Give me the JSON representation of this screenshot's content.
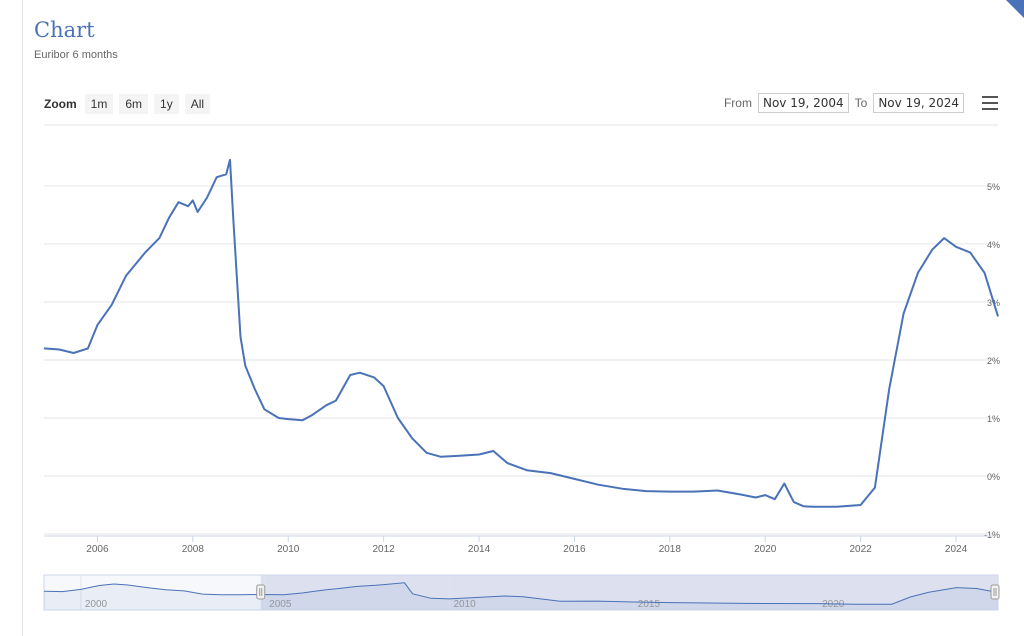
{
  "header": {
    "title": "Chart",
    "subtitle": "Euribor 6 months"
  },
  "toolbar": {
    "zoom_label": "Zoom",
    "zoom_buttons": [
      "1m",
      "6m",
      "1y",
      "All"
    ],
    "from_label": "From",
    "from_value": "Nov 19, 2004",
    "to_label": "To",
    "to_value": "Nov 19, 2024",
    "menu_icon": "hamburger-menu-icon"
  },
  "colors": {
    "series": "#4a72b8",
    "navigator_fill": "#d4daec",
    "grid": "#e6e6e6"
  },
  "chart_data": {
    "type": "line",
    "title": "",
    "series": [
      {
        "name": "",
        "x": [
          2004.88,
          2005.2,
          2005.5,
          2005.8,
          2006.0,
          2006.3,
          2006.6,
          2007.0,
          2007.3,
          2007.5,
          2007.7,
          2007.9,
          2008.0,
          2008.1,
          2008.3,
          2008.5,
          2008.7,
          2008.78,
          2008.85,
          2009.0,
          2009.1,
          2009.3,
          2009.5,
          2009.8,
          2010.0,
          2010.3,
          2010.5,
          2010.8,
          2011.0,
          2011.3,
          2011.5,
          2011.8,
          2012.0,
          2012.3,
          2012.6,
          2012.9,
          2013.2,
          2013.6,
          2014.0,
          2014.3,
          2014.6,
          2015.0,
          2015.5,
          2016.0,
          2016.5,
          2017.0,
          2017.5,
          2018.0,
          2018.5,
          2019.0,
          2019.5,
          2019.8,
          2020.0,
          2020.2,
          2020.4,
          2020.6,
          2020.8,
          2021.0,
          2021.5,
          2022.0,
          2022.3,
          2022.6,
          2022.9,
          2023.2,
          2023.5,
          2023.75,
          2024.0,
          2024.3,
          2024.6,
          2024.88
        ],
        "values": [
          2.2,
          2.18,
          2.12,
          2.2,
          2.6,
          2.95,
          3.45,
          3.85,
          4.1,
          4.45,
          4.72,
          4.65,
          4.75,
          4.55,
          4.8,
          5.15,
          5.2,
          5.45,
          4.4,
          2.4,
          1.9,
          1.5,
          1.15,
          1.0,
          0.98,
          0.96,
          1.05,
          1.22,
          1.3,
          1.74,
          1.78,
          1.7,
          1.55,
          1.0,
          0.65,
          0.4,
          0.33,
          0.35,
          0.37,
          0.43,
          0.22,
          0.1,
          0.05,
          -0.05,
          -0.15,
          -0.22,
          -0.26,
          -0.27,
          -0.27,
          -0.25,
          -0.32,
          -0.37,
          -0.33,
          -0.4,
          -0.13,
          -0.45,
          -0.52,
          -0.53,
          -0.53,
          -0.5,
          -0.2,
          1.5,
          2.8,
          3.5,
          3.9,
          4.1,
          3.95,
          3.85,
          3.5,
          2.75
        ]
      }
    ],
    "x_ticks": [
      "2006",
      "2008",
      "2010",
      "2012",
      "2014",
      "2016",
      "2018",
      "2020",
      "2022",
      "2024"
    ],
    "x_tick_values": [
      2006,
      2008,
      2010,
      2012,
      2014,
      2016,
      2018,
      2020,
      2022,
      2024
    ],
    "y_ticks": [
      "-1%",
      "0%",
      "1%",
      "2%",
      "3%",
      "4%",
      "5%"
    ],
    "y_tick_values": [
      -1,
      0,
      1,
      2,
      3,
      4,
      5
    ],
    "xlim": [
      2004.88,
      2024.88
    ],
    "ylim": [
      -1,
      6.05
    ],
    "y_axis_side": "right",
    "grid": true,
    "legend": "none",
    "navigator": {
      "ticks": [
        "2000",
        "2005",
        "2010",
        "2015",
        "2020"
      ],
      "tick_values": [
        2000,
        2005,
        2010,
        2015,
        2020
      ],
      "xlim": [
        1999.0,
        2024.88
      ],
      "selected_range": [
        2004.88,
        2024.88
      ],
      "x": [
        1999.0,
        1999.5,
        2000.0,
        2000.5,
        2000.9,
        2001.3,
        2001.8,
        2002.3,
        2002.8,
        2003.3,
        2003.8,
        2004.3,
        2004.88,
        2005.5,
        2006.0,
        2006.6,
        2007.0,
        2007.5,
        2008.0,
        2008.78,
        2009.0,
        2009.5,
        2010.0,
        2011.5,
        2012.0,
        2013.0,
        2014.0,
        2015.0,
        2016.0,
        2018.0,
        2020.0,
        2021.0,
        2022.0,
        2022.5,
        2023.0,
        2023.75,
        2024.3,
        2024.88
      ],
      "values": [
        3.1,
        3.0,
        3.6,
        4.7,
        5.1,
        4.8,
        4.1,
        3.5,
        3.2,
        2.3,
        2.15,
        2.15,
        2.2,
        2.12,
        2.6,
        3.45,
        3.85,
        4.45,
        4.75,
        5.45,
        2.4,
        1.15,
        0.98,
        1.78,
        1.55,
        0.33,
        0.37,
        0.1,
        -0.05,
        -0.27,
        -0.33,
        -0.53,
        -0.5,
        1.5,
        2.8,
        4.1,
        3.85,
        2.75
      ]
    }
  }
}
